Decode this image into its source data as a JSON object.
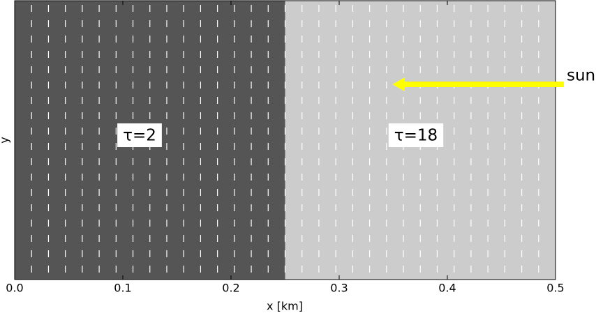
{
  "chart_data": {
    "type": "region",
    "xlabel": "x [km]",
    "ylabel": "y",
    "xlim": [
      0,
      0.5
    ],
    "xticks": [
      {
        "value": 0,
        "label": "0.0"
      },
      0.1,
      0.2,
      0.3,
      0.4,
      0.5
    ],
    "regions": [
      {
        "label": "τ=2",
        "x0": 0,
        "x1": 0.25,
        "color": "#555555"
      },
      {
        "label": "τ=18",
        "x0": 0.25,
        "x1": 0.5,
        "color": "#cccccc"
      }
    ],
    "dash_color": "#ffffff",
    "dashes_x": [
      0.015625,
      0.03125,
      0.046875,
      0.0625,
      0.078125,
      0.09375,
      0.109375,
      0.125,
      0.140625,
      0.15625,
      0.171875,
      0.1875,
      0.203125,
      0.21875,
      0.234375,
      0.25,
      0.265625,
      0.28125,
      0.296875,
      0.3125,
      0.328125,
      0.34375,
      0.359375,
      0.375,
      0.390625,
      0.40625,
      0.421875,
      0.4375,
      0.453125,
      0.46875,
      0.484375
    ],
    "annotation": {
      "text": "sun",
      "color": "#ffff00"
    }
  }
}
